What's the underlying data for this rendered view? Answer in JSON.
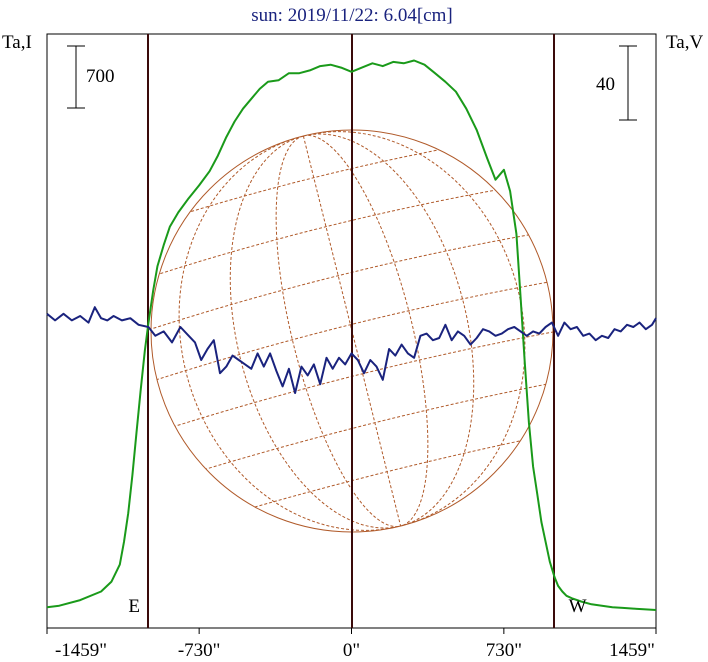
{
  "chart_data": {
    "type": "line",
    "title": "sun: 2019/11/22: 6.04[cm]",
    "left_axis_label": "Ta,I",
    "right_axis_label": "Ta,V",
    "left_scale_bar": "700",
    "right_scale_bar": "40",
    "x_ticks": [
      "-1459\"",
      "-730\"",
      "0\"",
      "730\"",
      "1459\""
    ],
    "x_tick_values": [
      -1459,
      -730,
      0,
      730,
      1459
    ],
    "xlim": [
      -1459,
      1459
    ],
    "limb_markers": [
      {
        "label": "E",
        "x": -973
      },
      {
        "label": "W",
        "x": 973
      }
    ],
    "series": [
      {
        "color": "#1a9a1a",
        "x": [
          -1459,
          -1400,
          -1300,
          -1200,
          -1150,
          -1110,
          -1090,
          -1070,
          -1050,
          -1030,
          -1010,
          -990,
          -973,
          -950,
          -930,
          -900,
          -870,
          -830,
          -780,
          -730,
          -680,
          -640,
          -600,
          -560,
          -520,
          -480,
          -440,
          -400,
          -350,
          -300,
          -250,
          -200,
          -150,
          -100,
          -50,
          0,
          50,
          100,
          150,
          200,
          250,
          300,
          350,
          400,
          450,
          500,
          550,
          600,
          650,
          690,
          730,
          760,
          790,
          810,
          830,
          850,
          870,
          890,
          910,
          930,
          950,
          973,
          990,
          1010,
          1030,
          1060,
          1100,
          1150,
          1200,
          1250,
          1300,
          1350,
          1400,
          1459
        ],
        "y": [
          20,
          30,
          70,
          130,
          200,
          320,
          480,
          680,
          950,
          1250,
          1550,
          1830,
          2020,
          2250,
          2420,
          2570,
          2700,
          2800,
          2900,
          2990,
          3090,
          3200,
          3330,
          3440,
          3530,
          3600,
          3670,
          3720,
          3730,
          3780,
          3780,
          3800,
          3830,
          3840,
          3820,
          3790,
          3820,
          3850,
          3830,
          3860,
          3850,
          3870,
          3840,
          3780,
          3720,
          3650,
          3530,
          3380,
          3180,
          3030,
          3100,
          2950,
          2650,
          2200,
          1750,
          1320,
          1010,
          820,
          620,
          480,
          340,
          230,
          170,
          130,
          100,
          80,
          60,
          40,
          30,
          20,
          15,
          10,
          5,
          0
        ]
      },
      {
        "color": "#1a237e",
        "x": [
          -1459,
          -1420,
          -1380,
          -1340,
          -1300,
          -1260,
          -1230,
          -1200,
          -1170,
          -1140,
          -1100,
          -1060,
          -1020,
          -973,
          -940,
          -900,
          -860,
          -820,
          -780,
          -750,
          -720,
          -690,
          -660,
          -630,
          -600,
          -570,
          -540,
          -510,
          -480,
          -450,
          -420,
          -390,
          -360,
          -330,
          -300,
          -270,
          -240,
          -210,
          -180,
          -150,
          -120,
          -90,
          -60,
          -30,
          0,
          30,
          60,
          90,
          120,
          150,
          180,
          210,
          240,
          270,
          300,
          330,
          360,
          390,
          420,
          450,
          480,
          510,
          540,
          570,
          600,
          630,
          660,
          690,
          720,
          750,
          780,
          810,
          840,
          870,
          900,
          930,
          960,
          990,
          1020,
          1050,
          1080,
          1110,
          1140,
          1170,
          1200,
          1230,
          1260,
          1290,
          1320,
          1350,
          1380,
          1410,
          1440,
          1459
        ],
        "y": [
          2,
          -4,
          2,
          -4,
          0,
          -6,
          8,
          -2,
          -4,
          0,
          -4,
          -2,
          -8,
          -10,
          -18,
          -14,
          -24,
          -10,
          -18,
          -24,
          -40,
          -30,
          -22,
          -52,
          -46,
          -36,
          -40,
          -44,
          -48,
          -34,
          -46,
          -34,
          -50,
          -64,
          -48,
          -70,
          -46,
          -54,
          -44,
          -62,
          -38,
          -48,
          -38,
          -44,
          -34,
          -40,
          -52,
          -40,
          -46,
          -58,
          -30,
          -36,
          -26,
          -34,
          -38,
          -18,
          -16,
          -22,
          -20,
          -8,
          -22,
          -14,
          -18,
          -26,
          -20,
          -12,
          -14,
          -18,
          -16,
          -12,
          -10,
          -14,
          -18,
          -14,
          -16,
          -10,
          -6,
          -18,
          -6,
          -12,
          -10,
          -18,
          -16,
          -22,
          -18,
          -20,
          -12,
          -14,
          -8,
          -10,
          -6,
          -12,
          -8,
          -2
        ]
      }
    ]
  }
}
